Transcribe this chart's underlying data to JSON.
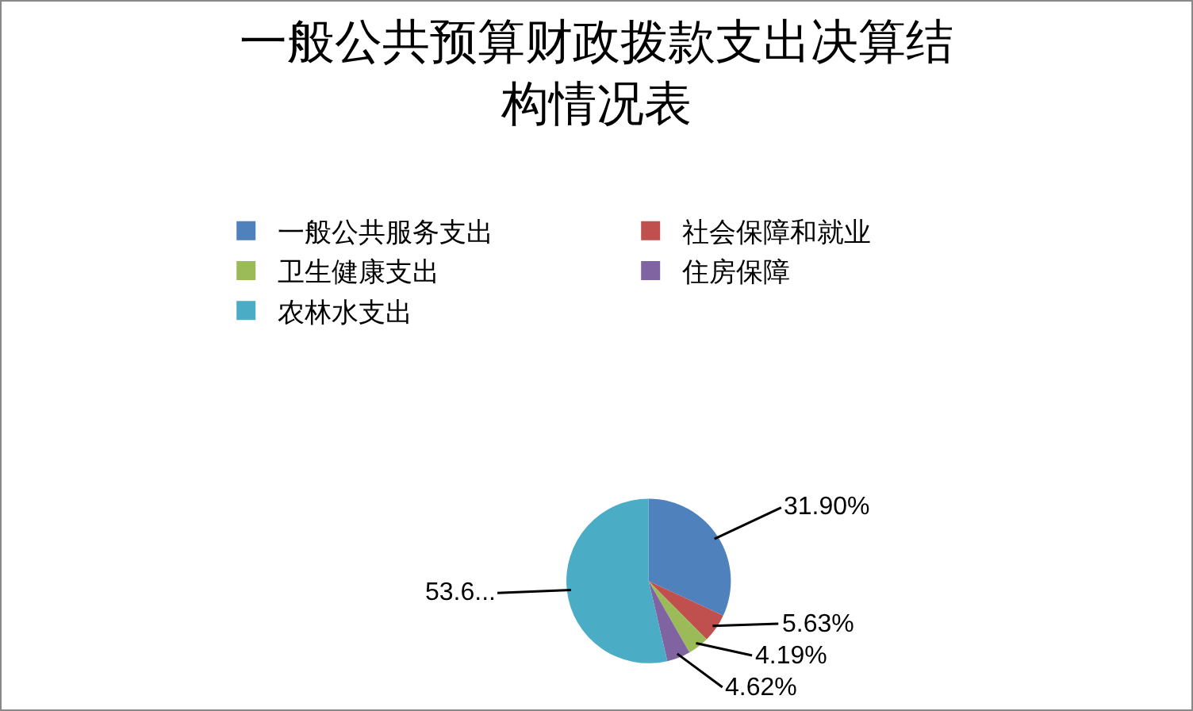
{
  "chart_data": {
    "type": "pie",
    "title": "一般公共预算财政拨款支出决算结构情况表",
    "categories": [
      "一般公共服务支出",
      "社会保障和就业",
      "卫生健康支出",
      "住房保障",
      "农林水支出"
    ],
    "values": [
      31.9,
      5.63,
      4.19,
      4.62,
      53.66
    ],
    "colors": [
      "#4f81bd",
      "#c0504d",
      "#9bbb59",
      "#8064a2",
      "#4bacc6"
    ],
    "value_labels": [
      "31.90%",
      "5.63%",
      "4.19%",
      "4.62%",
      "53.6..."
    ],
    "legend": "top"
  }
}
